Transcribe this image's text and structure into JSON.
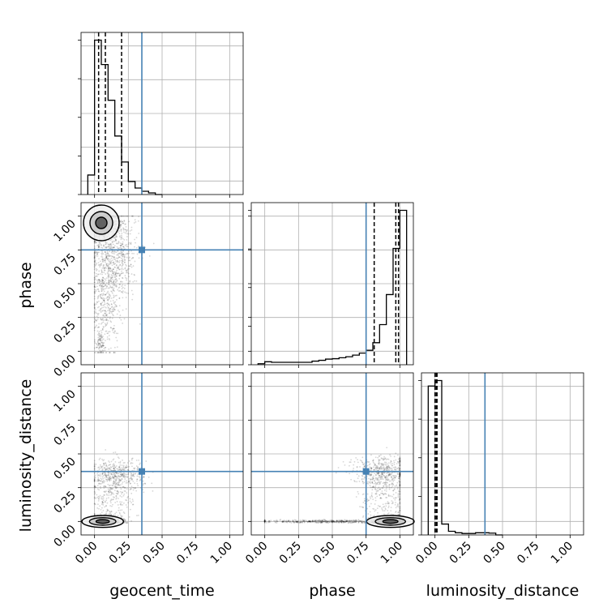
{
  "chart_data": {
    "type": "corner",
    "parameters": [
      "geocent_time",
      "phase",
      "luminosity_distance"
    ],
    "axis_range": [
      -0.1,
      1.1
    ],
    "tick_values": [
      0.0,
      0.25,
      0.5,
      0.75,
      1.0
    ],
    "tick_labels": [
      "0.00",
      "0.25",
      "0.50",
      "0.75",
      "1.00"
    ],
    "grid": true,
    "truth_color": "#4682b4",
    "truths": {
      "geocent_time": 0.35,
      "phase": 0.75,
      "luminosity_distance": 0.37
    },
    "histograms": {
      "geocent_time": {
        "bin_edges": [
          -0.05,
          0.0,
          0.05,
          0.1,
          0.15,
          0.2,
          0.25,
          0.3,
          0.35,
          0.4,
          0.45,
          0.5
        ],
        "heights": [
          0.12,
          0.95,
          0.8,
          0.58,
          0.36,
          0.2,
          0.08,
          0.04,
          0.02,
          0.01,
          0.0
        ],
        "quantiles": [
          0.03,
          0.08,
          0.2
        ]
      },
      "phase": {
        "bin_edges": [
          -0.05,
          0.0,
          0.05,
          0.1,
          0.15,
          0.2,
          0.25,
          0.3,
          0.35,
          0.4,
          0.45,
          0.5,
          0.55,
          0.6,
          0.65,
          0.7,
          0.75,
          0.8,
          0.85,
          0.9,
          0.95,
          1.0,
          1.05
        ],
        "heights": [
          0.005,
          0.015,
          0.012,
          0.012,
          0.012,
          0.012,
          0.012,
          0.012,
          0.018,
          0.022,
          0.028,
          0.03,
          0.035,
          0.04,
          0.048,
          0.058,
          0.072,
          0.11,
          0.2,
          0.35,
          0.58,
          0.77,
          0.0
        ],
        "quantiles": [
          0.81,
          0.97,
          0.99
        ]
      },
      "luminosity_distance": {
        "bin_edges": [
          -0.05,
          0.0,
          0.05,
          0.1,
          0.15,
          0.2,
          0.25,
          0.3,
          0.35,
          0.4,
          0.45,
          0.5
        ],
        "heights": [
          0.82,
          0.85,
          0.06,
          0.02,
          0.012,
          0.008,
          0.008,
          0.012,
          0.012,
          0.01,
          0.0
        ],
        "quantiles": [
          0.0,
          0.01,
          0.015
        ]
      }
    },
    "scatter_clusters": {
      "phase_vs_geocent_time": [
        {
          "center": [
            0.05,
            0.95
          ],
          "spread": [
            0.06,
            0.06
          ],
          "n": 900
        },
        {
          "center": [
            0.15,
            0.72
          ],
          "spread": [
            0.09,
            0.18
          ],
          "n": 700
        },
        {
          "center": [
            0.08,
            0.4
          ],
          "spread": [
            0.05,
            0.22
          ],
          "n": 450
        },
        {
          "center": [
            0.04,
            0.06
          ],
          "spread": [
            0.02,
            0.05
          ],
          "n": 80
        }
      ],
      "luminosity_distance_vs_geocent_time": [
        {
          "center": [
            0.06,
            0.0
          ],
          "spread": [
            0.07,
            0.02
          ],
          "n": 1100
        },
        {
          "center": [
            0.17,
            0.35
          ],
          "spread": [
            0.1,
            0.06
          ],
          "n": 450
        },
        {
          "center": [
            0.12,
            0.18
          ],
          "spread": [
            0.08,
            0.1
          ],
          "n": 250
        }
      ],
      "luminosity_distance_vs_phase": [
        {
          "center": [
            0.93,
            0.0
          ],
          "spread": [
            0.08,
            0.02
          ],
          "n": 900
        },
        {
          "center": [
            0.45,
            0.0
          ],
          "spread": [
            0.25,
            0.006
          ],
          "n": 450
        },
        {
          "center": [
            0.88,
            0.37
          ],
          "spread": [
            0.12,
            0.06
          ],
          "n": 500
        },
        {
          "center": [
            0.9,
            0.18
          ],
          "spread": [
            0.1,
            0.1
          ],
          "n": 250
        }
      ]
    }
  }
}
